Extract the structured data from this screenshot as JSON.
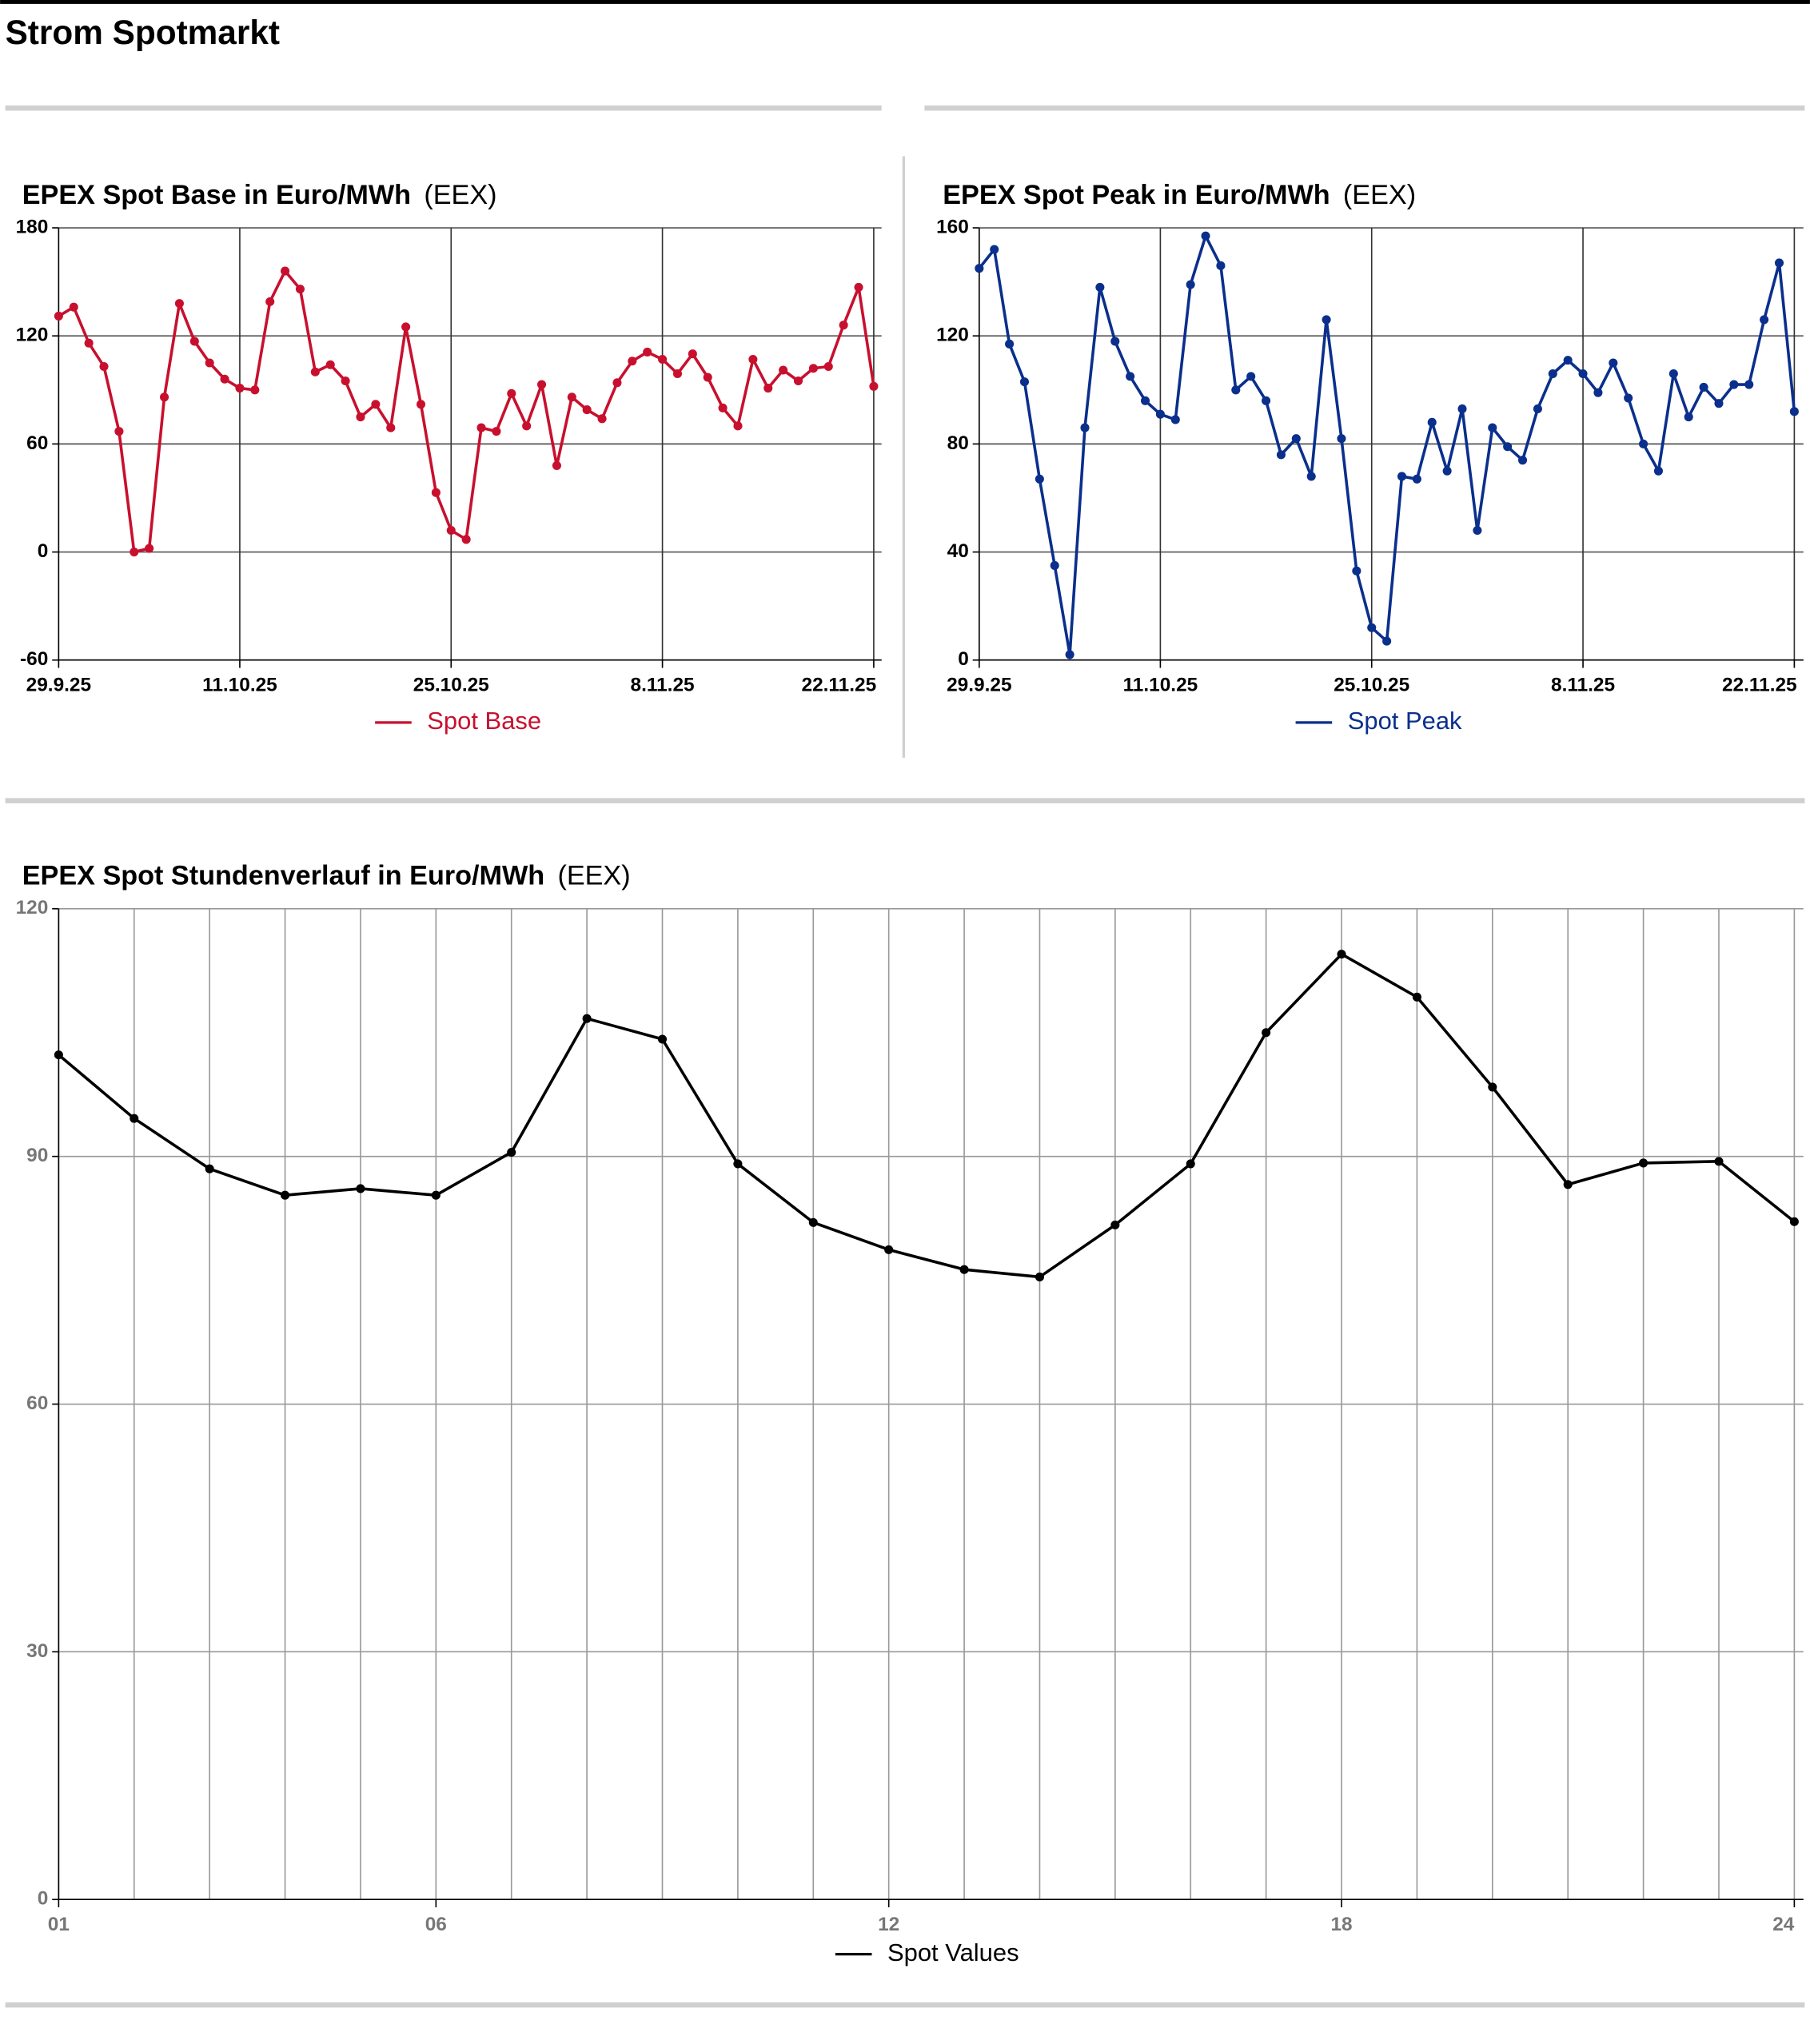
{
  "title": "Strom Spotmarkt",
  "chart_data": [
    {
      "type": "line",
      "title": "EPEX Spot Base in Euro/MWh",
      "source": "(EEX)",
      "categories": [
        "29.9.25",
        null,
        null,
        null,
        null,
        null,
        null,
        null,
        null,
        null,
        null,
        null,
        "11.10.25",
        null,
        null,
        null,
        null,
        null,
        null,
        null,
        null,
        null,
        null,
        null,
        null,
        null,
        "25.10.25",
        null,
        null,
        null,
        null,
        null,
        null,
        null,
        null,
        null,
        null,
        null,
        null,
        null,
        "8.11.25",
        null,
        null,
        null,
        null,
        null,
        null,
        null,
        null,
        null,
        null,
        null,
        null,
        null,
        "22.11.25"
      ],
      "series": [
        {
          "name": "Spot Base",
          "color": "#c8102e",
          "values": [
            131,
            136,
            116,
            103,
            67,
            0,
            2,
            86,
            138,
            117,
            105,
            96,
            91,
            90,
            139,
            156,
            146,
            100,
            104,
            95,
            75,
            82,
            69,
            125,
            82,
            33,
            12,
            7,
            69,
            67,
            88,
            70,
            93,
            48,
            86,
            79,
            74,
            94,
            106,
            111,
            107,
            99,
            110,
            97,
            80,
            70,
            107,
            91,
            101,
            95,
            102,
            103,
            126,
            147,
            92
          ]
        }
      ],
      "ylim": [
        -60,
        180
      ],
      "yticks": [
        -60,
        0,
        60,
        120,
        180
      ],
      "grid": true,
      "legend": "bottom"
    },
    {
      "type": "line",
      "title": "EPEX Spot Peak in Euro/MWh",
      "source": "(EEX)",
      "categories": [
        "29.9.25",
        null,
        null,
        null,
        null,
        null,
        null,
        null,
        null,
        null,
        null,
        null,
        "11.10.25",
        null,
        null,
        null,
        null,
        null,
        null,
        null,
        null,
        null,
        null,
        null,
        null,
        null,
        "25.10.25",
        null,
        null,
        null,
        null,
        null,
        null,
        null,
        null,
        null,
        null,
        null,
        null,
        null,
        "8.11.25",
        null,
        null,
        null,
        null,
        null,
        null,
        null,
        null,
        null,
        null,
        null,
        null,
        null,
        "22.11.25"
      ],
      "series": [
        {
          "name": "Spot Peak",
          "color": "#0a2f8c",
          "values": [
            145,
            152,
            117,
            103,
            67,
            35,
            2,
            86,
            138,
            118,
            105,
            96,
            91,
            89,
            139,
            157,
            146,
            100,
            105,
            96,
            76,
            82,
            68,
            126,
            82,
            33,
            12,
            7,
            68,
            67,
            88,
            70,
            93,
            48,
            86,
            79,
            74,
            93,
            106,
            111,
            106,
            99,
            110,
            97,
            80,
            70,
            106,
            90,
            101,
            95,
            102,
            102,
            126,
            147,
            92
          ]
        }
      ],
      "ylim": [
        0,
        160
      ],
      "yticks": [
        0,
        40,
        80,
        120,
        160
      ],
      "grid": true,
      "legend": "bottom"
    },
    {
      "type": "line",
      "title": "EPEX Spot Stundenverlauf in Euro/MWh",
      "source": "(EEX)",
      "x": [
        1,
        2,
        3,
        4,
        5,
        6,
        7,
        8,
        9,
        10,
        11,
        12,
        13,
        14,
        15,
        16,
        17,
        18,
        19,
        20,
        21,
        22,
        23,
        24
      ],
      "xlim": [
        1,
        24
      ],
      "xticks": [
        {
          "value": 1,
          "label": "01"
        },
        {
          "value": 6,
          "label": "06"
        },
        {
          "value": 12,
          "label": "12"
        },
        {
          "value": 18,
          "label": "18"
        },
        {
          "value": 24,
          "label": "24"
        }
      ],
      "series": [
        {
          "name": "Spot Values",
          "color": "#000000",
          "values": [
            102.3,
            94.6,
            88.5,
            85.3,
            86.1,
            85.3,
            90.5,
            106.7,
            104.2,
            89.1,
            82.0,
            78.7,
            76.3,
            75.4,
            81.7,
            89.1,
            105.0,
            114.5,
            109.3,
            98.4,
            86.6,
            89.2,
            89.4,
            82.1
          ]
        }
      ],
      "ylim": [
        0,
        120
      ],
      "yticks": [
        0,
        30,
        60,
        90,
        120
      ],
      "grid": true,
      "legend": "bottom"
    }
  ]
}
